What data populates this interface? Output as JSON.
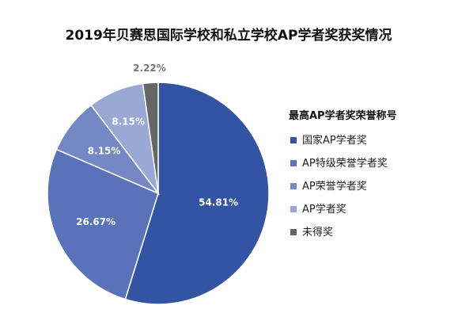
{
  "chart_data": {
    "type": "pie",
    "title": "2019年贝赛思国际学校和私立学校AP学者奖获奖情况",
    "legend_title": "最高AP学者奖荣誉称号",
    "legend_position": "right",
    "categories": [
      "国家AP学者奖",
      "AP特级荣誉学者奖",
      "AP荣誉学者奖",
      "AP学者奖",
      "未得奖"
    ],
    "values": [
      54.81,
      26.67,
      8.15,
      8.15,
      2.22
    ],
    "labels": [
      "54.81%",
      "26.67%",
      "8.15%",
      "8.15%",
      "2.22%"
    ],
    "colors": [
      "#3353a3",
      "#5a72b9",
      "#7587c4",
      "#9aa8d5",
      "#666666"
    ]
  }
}
